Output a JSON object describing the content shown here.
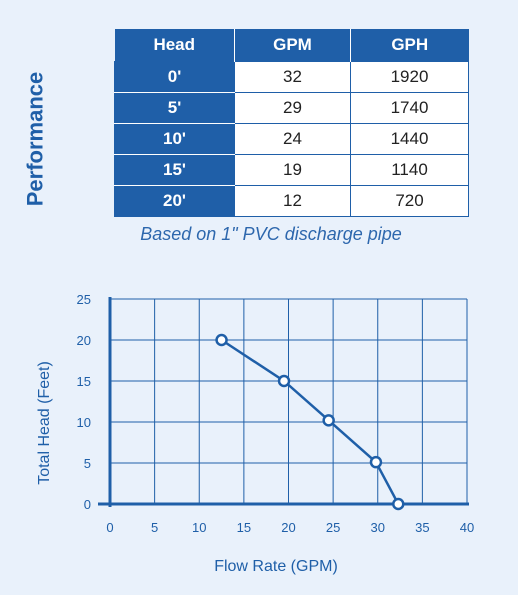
{
  "side_title": "Performance",
  "table": {
    "headers": [
      "Head",
      "GPM",
      "GPH"
    ],
    "rows": [
      [
        "0'",
        "32",
        "1920"
      ],
      [
        "5'",
        "29",
        "1740"
      ],
      [
        "10'",
        "24",
        "1440"
      ],
      [
        "15'",
        "19",
        "1140"
      ],
      [
        "20'",
        "12",
        "720"
      ]
    ]
  },
  "caption": "Based on 1\" PVC discharge pipe",
  "colors": {
    "primary": "#1f5fa8",
    "background": "#e9f1fb",
    "grid": "#1f5fa8"
  },
  "chart_data": {
    "type": "line",
    "xlabel": "Flow Rate (GPM)",
    "ylabel": "Total Head (Feet)",
    "xlim": [
      0,
      40
    ],
    "ylim": [
      0,
      25
    ],
    "x_ticks": [
      0,
      5,
      10,
      15,
      20,
      25,
      30,
      35,
      40
    ],
    "y_ticks": [
      0,
      5,
      10,
      15,
      20,
      25
    ],
    "grid": true,
    "series": [
      {
        "x": [
          12.5,
          19.5,
          24.5,
          29.8,
          32.3
        ],
        "y": [
          20,
          15,
          10.2,
          5.1,
          0
        ]
      }
    ]
  }
}
